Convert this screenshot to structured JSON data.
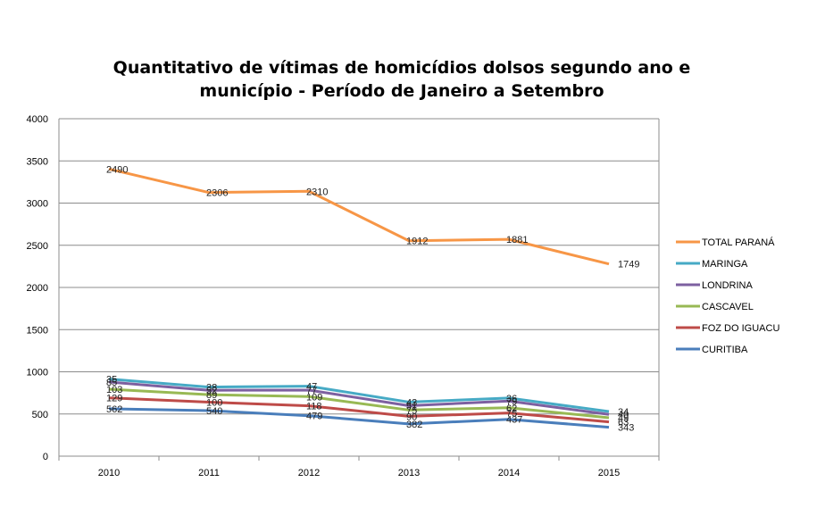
{
  "chart_data": {
    "type": "line",
    "stacked": true,
    "title": "Quantitativo de vítimas de homicídios dolsos segundo ano e município - Período de Janeiro a Setembro",
    "title_lines": [
      "Quantitativo de vítimas de homicídios dolsos segundo ano e",
      "município - Período de Janeiro a Setembro"
    ],
    "xlabel": "",
    "ylabel": "",
    "categories": [
      "2010",
      "2011",
      "2012",
      "2013",
      "2014",
      "2015"
    ],
    "ylim": [
      0,
      4000
    ],
    "yticks": [
      0,
      500,
      1000,
      1500,
      2000,
      2500,
      3000,
      3500,
      4000
    ],
    "grid": true,
    "legend_position": "right",
    "series": [
      {
        "name": "CURITIBA",
        "color": "#4a7ebb",
        "values": [
          562,
          540,
          479,
          382,
          437,
          343
        ]
      },
      {
        "name": "FOZ DO IGUACU",
        "color": "#be4b48",
        "values": [
          129,
          100,
          118,
          90,
          75,
          63
        ]
      },
      {
        "name": "CASCAVEL",
        "color": "#98b954",
        "values": [
          103,
          89,
          109,
          75,
          62,
          49
        ]
      },
      {
        "name": "LONDRINA",
        "color": "#7d60a0",
        "values": [
          85,
          52,
          77,
          51,
          79,
          40
        ]
      },
      {
        "name": "MARINGA",
        "color": "#46aac5",
        "values": [
          35,
          38,
          47,
          43,
          36,
          34
        ]
      },
      {
        "name": "TOTAL PARANÁ",
        "color": "#f79646",
        "values": [
          2490,
          2306,
          2310,
          1912,
          1881,
          1749
        ]
      }
    ],
    "legend_order": [
      "TOTAL PARANÁ",
      "MARINGA",
      "LONDRINA",
      "CASCAVEL",
      "FOZ DO IGUACU",
      "CURITIBA"
    ]
  }
}
